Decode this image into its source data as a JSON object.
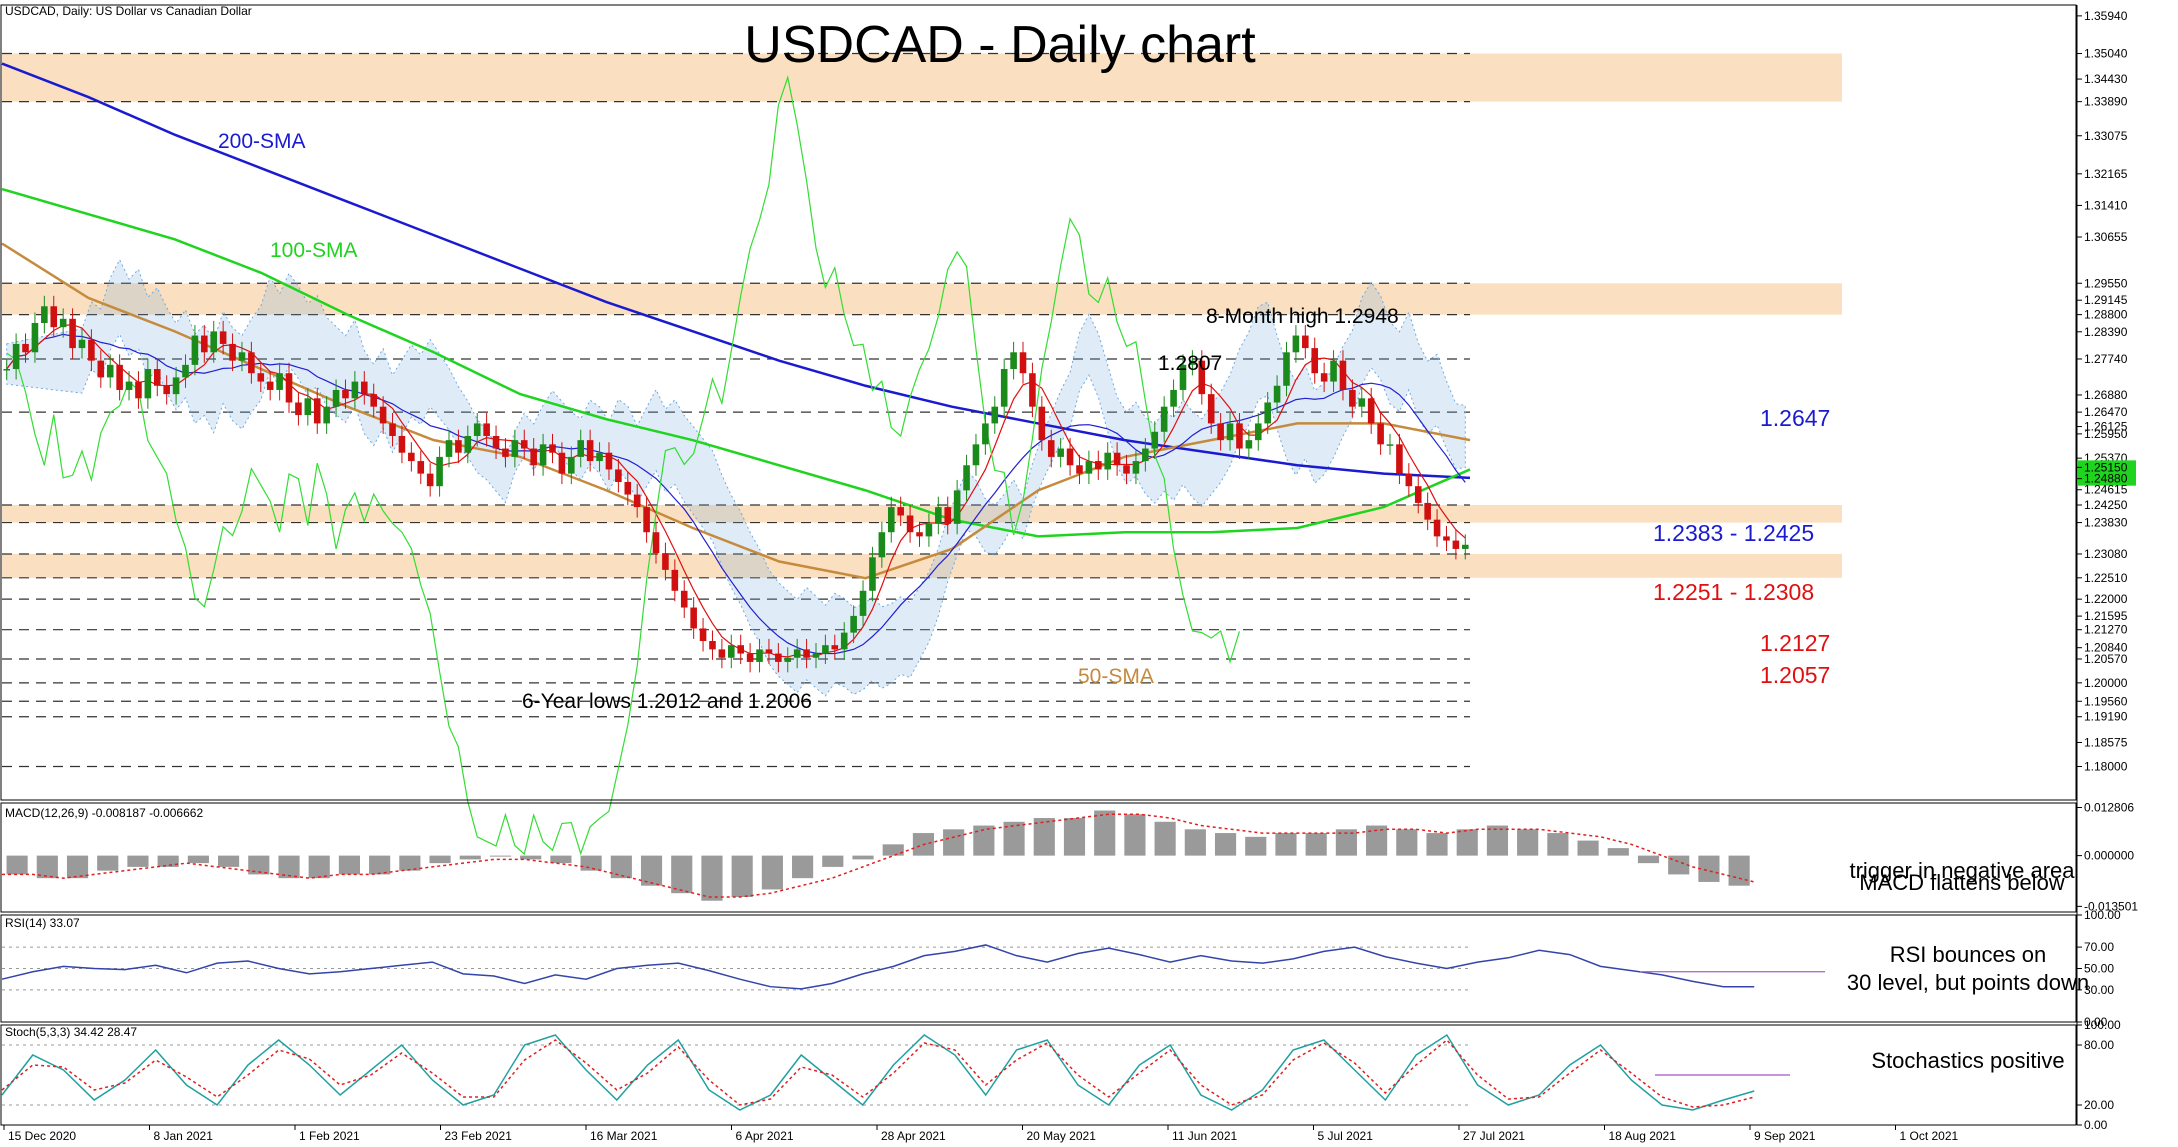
{
  "header": {
    "symbol_info": "USDCAD, Daily:  US Dollar vs Canadian Dollar",
    "title": "USDCAD - Daily chart"
  },
  "colors": {
    "sma200": "#1a1ad0",
    "sma100": "#1fd41f",
    "sma50": "#c58a3c",
    "tenkan": "#e01010",
    "kijun": "#2020d0",
    "chikou": "#33dd33",
    "zone": "#fae0c0",
    "bull": "#1a8a1a",
    "bear": "#d01010",
    "cloud": "#6fa8e0",
    "rsi": "#3344aa",
    "stoch_main": "#20a0a0",
    "stoch_signal": "#e02020",
    "macd_hist": "#9a9a9a",
    "macd_signal": "#e02020"
  },
  "chart_data": {
    "type": "candlestick",
    "x_ticks": [
      "15 Dec 2020",
      "8 Jan 2021",
      "1 Feb 2021",
      "23 Feb 2021",
      "16 Mar 2021",
      "6 Apr 2021",
      "28 Apr 2021",
      "20 May 2021",
      "11 Jun 2021",
      "5 Jul 2021",
      "27 Jul 2021",
      "18 Aug 2021",
      "9 Sep 2021",
      "1 Oct 2021"
    ],
    "price_ylim": [
      1.172,
      1.362
    ],
    "price_ticks": [
      "1.35940",
      "1.35040",
      "1.34430",
      "1.33890",
      "1.33075",
      "1.32165",
      "1.31410",
      "1.30655",
      "1.29550",
      "1.29145",
      "1.28800",
      "1.28390",
      "1.27740",
      "1.26880",
      "1.26470",
      "1.26125",
      "1.25950",
      "1.25370",
      "1.25150",
      "1.24880",
      "1.24615",
      "1.24250",
      "1.23830",
      "1.23080",
      "1.22510",
      "1.22000",
      "1.21595",
      "1.21270",
      "1.20840",
      "1.20570",
      "1.20000",
      "1.19560",
      "1.19190",
      "1.18575",
      "1.18000"
    ],
    "highlighted_ticks": [
      "1.25150",
      "1.24880"
    ],
    "resistance_levels": [
      1.3504,
      1.3389,
      1.2955,
      1.288,
      1.2774,
      1.2647,
      1.2425,
      1.2383,
      1.2308,
      1.2251,
      1.22,
      1.2127,
      1.2057,
      1.2,
      1.1956,
      1.1919,
      1.18
    ],
    "zones": [
      [
        1.3389,
        1.3504
      ],
      [
        1.288,
        1.2955
      ],
      [
        1.2383,
        1.2425
      ],
      [
        1.2251,
        1.2308
      ]
    ],
    "series": [
      {
        "name": "200-SMA",
        "values": [
          1.348,
          1.34,
          1.331,
          1.323,
          1.315,
          1.307,
          1.299,
          1.291,
          1.284,
          1.277,
          1.271,
          1.266,
          1.262,
          1.258,
          1.255,
          1.252,
          1.25,
          1.249
        ]
      },
      {
        "name": "100-SMA",
        "values": [
          1.318,
          1.312,
          1.306,
          1.298,
          1.288,
          1.279,
          1.269,
          1.263,
          1.258,
          1.252,
          1.246,
          1.239,
          1.235,
          1.236,
          1.236,
          1.237,
          1.242,
          1.251
        ]
      },
      {
        "name": "50-SMA",
        "values": [
          1.305,
          1.292,
          1.284,
          1.275,
          1.266,
          1.258,
          1.254,
          1.246,
          1.237,
          1.229,
          1.225,
          1.232,
          1.246,
          1.254,
          1.258,
          1.262,
          1.262,
          1.258
        ]
      }
    ],
    "candles": [
      1.275,
      1.281,
      1.279,
      1.286,
      1.29,
      1.285,
      1.287,
      1.28,
      1.282,
      1.277,
      1.273,
      1.276,
      1.27,
      1.272,
      1.268,
      1.275,
      1.271,
      1.269,
      1.273,
      1.276,
      1.283,
      1.279,
      1.284,
      1.281,
      1.277,
      1.279,
      1.274,
      1.272,
      1.27,
      1.274,
      1.267,
      1.264,
      1.268,
      1.262,
      1.266,
      1.27,
      1.268,
      1.272,
      1.269,
      1.266,
      1.262,
      1.259,
      1.255,
      1.253,
      1.25,
      1.247,
      1.254,
      1.258,
      1.255,
      1.259,
      1.262,
      1.259,
      1.256,
      1.254,
      1.258,
      1.256,
      1.252,
      1.257,
      1.255,
      1.25,
      1.254,
      1.258,
      1.253,
      1.255,
      1.251,
      1.248,
      1.245,
      1.242,
      1.236,
      1.231,
      1.227,
      1.222,
      1.218,
      1.213,
      1.21,
      1.208,
      1.206,
      1.209,
      1.207,
      1.205,
      1.208,
      1.207,
      1.205,
      1.206,
      1.208,
      1.206,
      1.207,
      1.209,
      1.208,
      1.212,
      1.216,
      1.222,
      1.23,
      1.236,
      1.242,
      1.24,
      1.236,
      1.235,
      1.238,
      1.242,
      1.238,
      1.246,
      1.252,
      1.257,
      1.262,
      1.266,
      1.275,
      1.279,
      1.274,
      1.266,
      1.258,
      1.254,
      1.256,
      1.252,
      1.25,
      1.253,
      1.251,
      1.255,
      1.252,
      1.25,
      1.253,
      1.256,
      1.26,
      1.266,
      1.27,
      1.276,
      1.277,
      1.269,
      1.262,
      1.258,
      1.262,
      1.256,
      1.258,
      1.262,
      1.267,
      1.271,
      1.279,
      1.283,
      1.28,
      1.274,
      1.272,
      1.277,
      1.27,
      1.266,
      1.268,
      1.262,
      1.257,
      1.257,
      1.25,
      1.247,
      1.243,
      1.239,
      1.235,
      1.234,
      1.232,
      1.233
    ],
    "annotations": [
      {
        "text": "200-SMA",
        "color": "#1a1ad0"
      },
      {
        "text": "100-SMA",
        "color": "#1fd41f"
      },
      {
        "text": "50-SMA",
        "color": "#c58a3c"
      },
      {
        "text": "8-Month high 1.2948",
        "color": "#000000"
      },
      {
        "text": "1.2807",
        "color": "#000000"
      },
      {
        "text": "6-Year lows 1.2012 and 1.2006",
        "color": "#000000"
      },
      {
        "text": "1.2647",
        "color": "#1a1ad0"
      },
      {
        "text": "1.2383 - 1.2425",
        "color": "#1a1ad0"
      },
      {
        "text": "1.2251 - 1.2308",
        "color": "#e01010"
      },
      {
        "text": "1.2127",
        "color": "#e01010"
      },
      {
        "text": "1.2057",
        "color": "#e01010"
      }
    ],
    "macd": {
      "label": "MACD(12,26,9) -0.008187 -0.006662",
      "ylim": [
        -0.015,
        0.014
      ],
      "ticks": [
        "0.012806",
        "0.000000",
        "-0.013501"
      ],
      "histogram": [
        -0.005,
        -0.006,
        -0.006,
        -0.004,
        -0.003,
        -0.003,
        -0.002,
        -0.003,
        -0.005,
        -0.006,
        -0.006,
        -0.005,
        -0.005,
        -0.004,
        -0.002,
        -0.001,
        0.0,
        -0.001,
        -0.002,
        -0.004,
        -0.006,
        -0.008,
        -0.01,
        -0.012,
        -0.011,
        -0.009,
        -0.006,
        -0.003,
        -0.001,
        0.003,
        0.006,
        0.007,
        0.008,
        0.009,
        0.01,
        0.01,
        0.012,
        0.011,
        0.009,
        0.007,
        0.006,
        0.005,
        0.006,
        0.006,
        0.007,
        0.008,
        0.007,
        0.006,
        0.007,
        0.008,
        0.007,
        0.006,
        0.004,
        0.002,
        -0.002,
        -0.005,
        -0.007,
        -0.008
      ],
      "signal": [
        -0.005,
        -0.005,
        -0.006,
        -0.005,
        -0.004,
        -0.003,
        -0.002,
        -0.003,
        -0.004,
        -0.005,
        -0.006,
        -0.005,
        -0.005,
        -0.004,
        -0.003,
        -0.002,
        -0.001,
        -0.001,
        -0.002,
        -0.003,
        -0.005,
        -0.007,
        -0.009,
        -0.011,
        -0.011,
        -0.01,
        -0.008,
        -0.006,
        -0.003,
        0.0,
        0.003,
        0.005,
        0.007,
        0.008,
        0.009,
        0.01,
        0.011,
        0.011,
        0.01,
        0.008,
        0.007,
        0.006,
        0.006,
        0.006,
        0.006,
        0.007,
        0.007,
        0.006,
        0.007,
        0.007,
        0.007,
        0.006,
        0.005,
        0.003,
        0.0,
        -0.003,
        -0.005,
        -0.007
      ],
      "note_lines": [
        "MACD flattens below",
        "trigger in negative area"
      ]
    },
    "rsi": {
      "label": "RSI(14) 33.07",
      "ylim": [
        0,
        100
      ],
      "ticks": [
        "100.00",
        "70.00",
        "50.00",
        "30.00",
        "0.00"
      ],
      "values": [
        40,
        47,
        52,
        50,
        49,
        53,
        46,
        55,
        57,
        50,
        45,
        47,
        50,
        53,
        56,
        45,
        43,
        36,
        44,
        40,
        50,
        53,
        55,
        48,
        40,
        33,
        31,
        36,
        45,
        52,
        62,
        66,
        72,
        62,
        56,
        64,
        69,
        63,
        56,
        62,
        57,
        55,
        59,
        66,
        70,
        61,
        55,
        50,
        56,
        60,
        67,
        63,
        52,
        48,
        44,
        38,
        33,
        33
      ],
      "reference_levels": [
        47
      ],
      "note_lines": [
        "RSI bounces on",
        "30 level, but points down"
      ]
    },
    "stoch": {
      "label": "Stoch(5,3,3) 34.42 28.47",
      "ylim": [
        0,
        100
      ],
      "ticks": [
        "100.00",
        "80.00",
        "20.00",
        "0.00"
      ],
      "main": [
        30,
        70,
        55,
        25,
        45,
        75,
        40,
        20,
        60,
        85,
        60,
        30,
        55,
        80,
        45,
        20,
        30,
        80,
        90,
        55,
        25,
        60,
        85,
        35,
        15,
        30,
        70,
        45,
        20,
        60,
        90,
        70,
        30,
        75,
        85,
        40,
        20,
        60,
        80,
        30,
        15,
        35,
        75,
        85,
        55,
        25,
        70,
        90,
        40,
        20,
        30,
        60,
        80,
        45,
        20,
        15,
        25,
        34
      ],
      "signal": [
        35,
        60,
        58,
        35,
        42,
        65,
        48,
        28,
        50,
        75,
        66,
        40,
        50,
        72,
        52,
        28,
        28,
        65,
        85,
        62,
        35,
        52,
        78,
        45,
        20,
        26,
        58,
        50,
        28,
        52,
        82,
        75,
        40,
        65,
        82,
        50,
        28,
        52,
        75,
        40,
        20,
        30,
        65,
        82,
        62,
        32,
        60,
        85,
        50,
        26,
        28,
        52,
        75,
        52,
        28,
        18,
        20,
        28
      ],
      "reference_levels": [
        50
      ],
      "note_lines": [
        "Stochastics positive"
      ]
    }
  }
}
